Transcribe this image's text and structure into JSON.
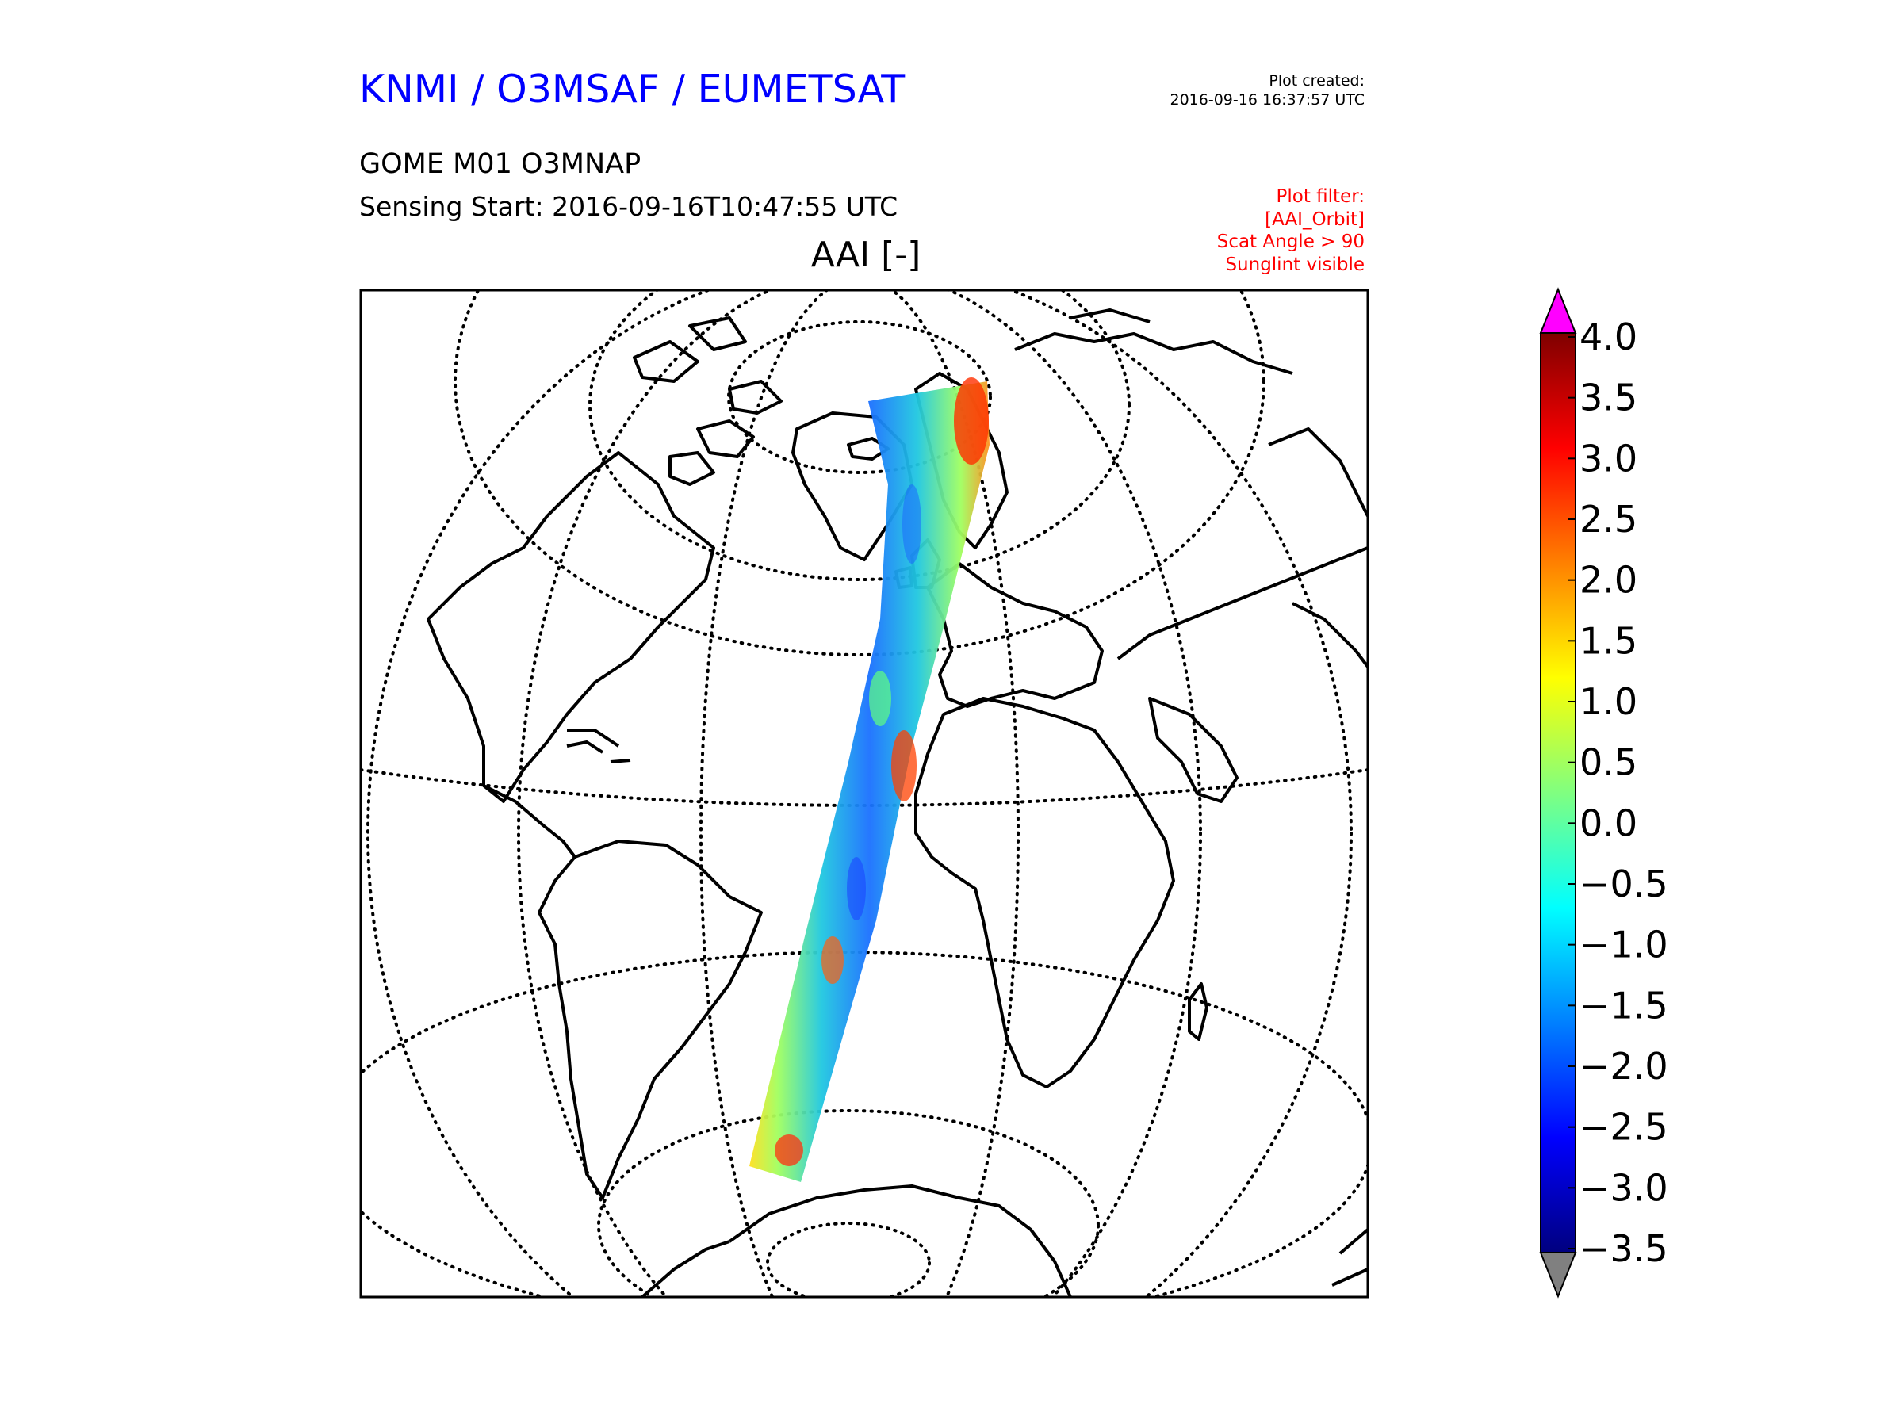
{
  "header": {
    "organization": "KNMI / O3MSAF / EUMETSAT",
    "plot_created_label": "Plot created:",
    "plot_created_time": "2016-09-16 16:37:57 UTC",
    "product": "GOME M01 O3MNAP",
    "sensing_start": "Sensing Start: 2016-09-16T10:47:55 UTC",
    "filter_lines": [
      "Plot filter:",
      "[AAI_Orbit]",
      "Scat Angle > 90",
      "Sunglint visible"
    ]
  },
  "plot": {
    "title": "AAI [-]",
    "projection": "orthographic",
    "graticule": "dotted",
    "swath_colormap": "jet"
  },
  "colorbar": {
    "ticks": [
      "4.0",
      "3.5",
      "3.0",
      "2.5",
      "2.0",
      "1.5",
      "1.0",
      "0.5",
      "0.0",
      "−0.5",
      "−1.0",
      "−1.5",
      "−2.0",
      "−2.5",
      "−3.0",
      "−3.5"
    ],
    "min": -3.5,
    "max": 4.0,
    "over_color": "#ff00ff",
    "under_color": "#808080",
    "colors": [
      "#7f0000",
      "#ff0000",
      "#ff8000",
      "#ffff00",
      "#80ff80",
      "#00ffff",
      "#0080ff",
      "#0000ff",
      "#00007f"
    ]
  }
}
